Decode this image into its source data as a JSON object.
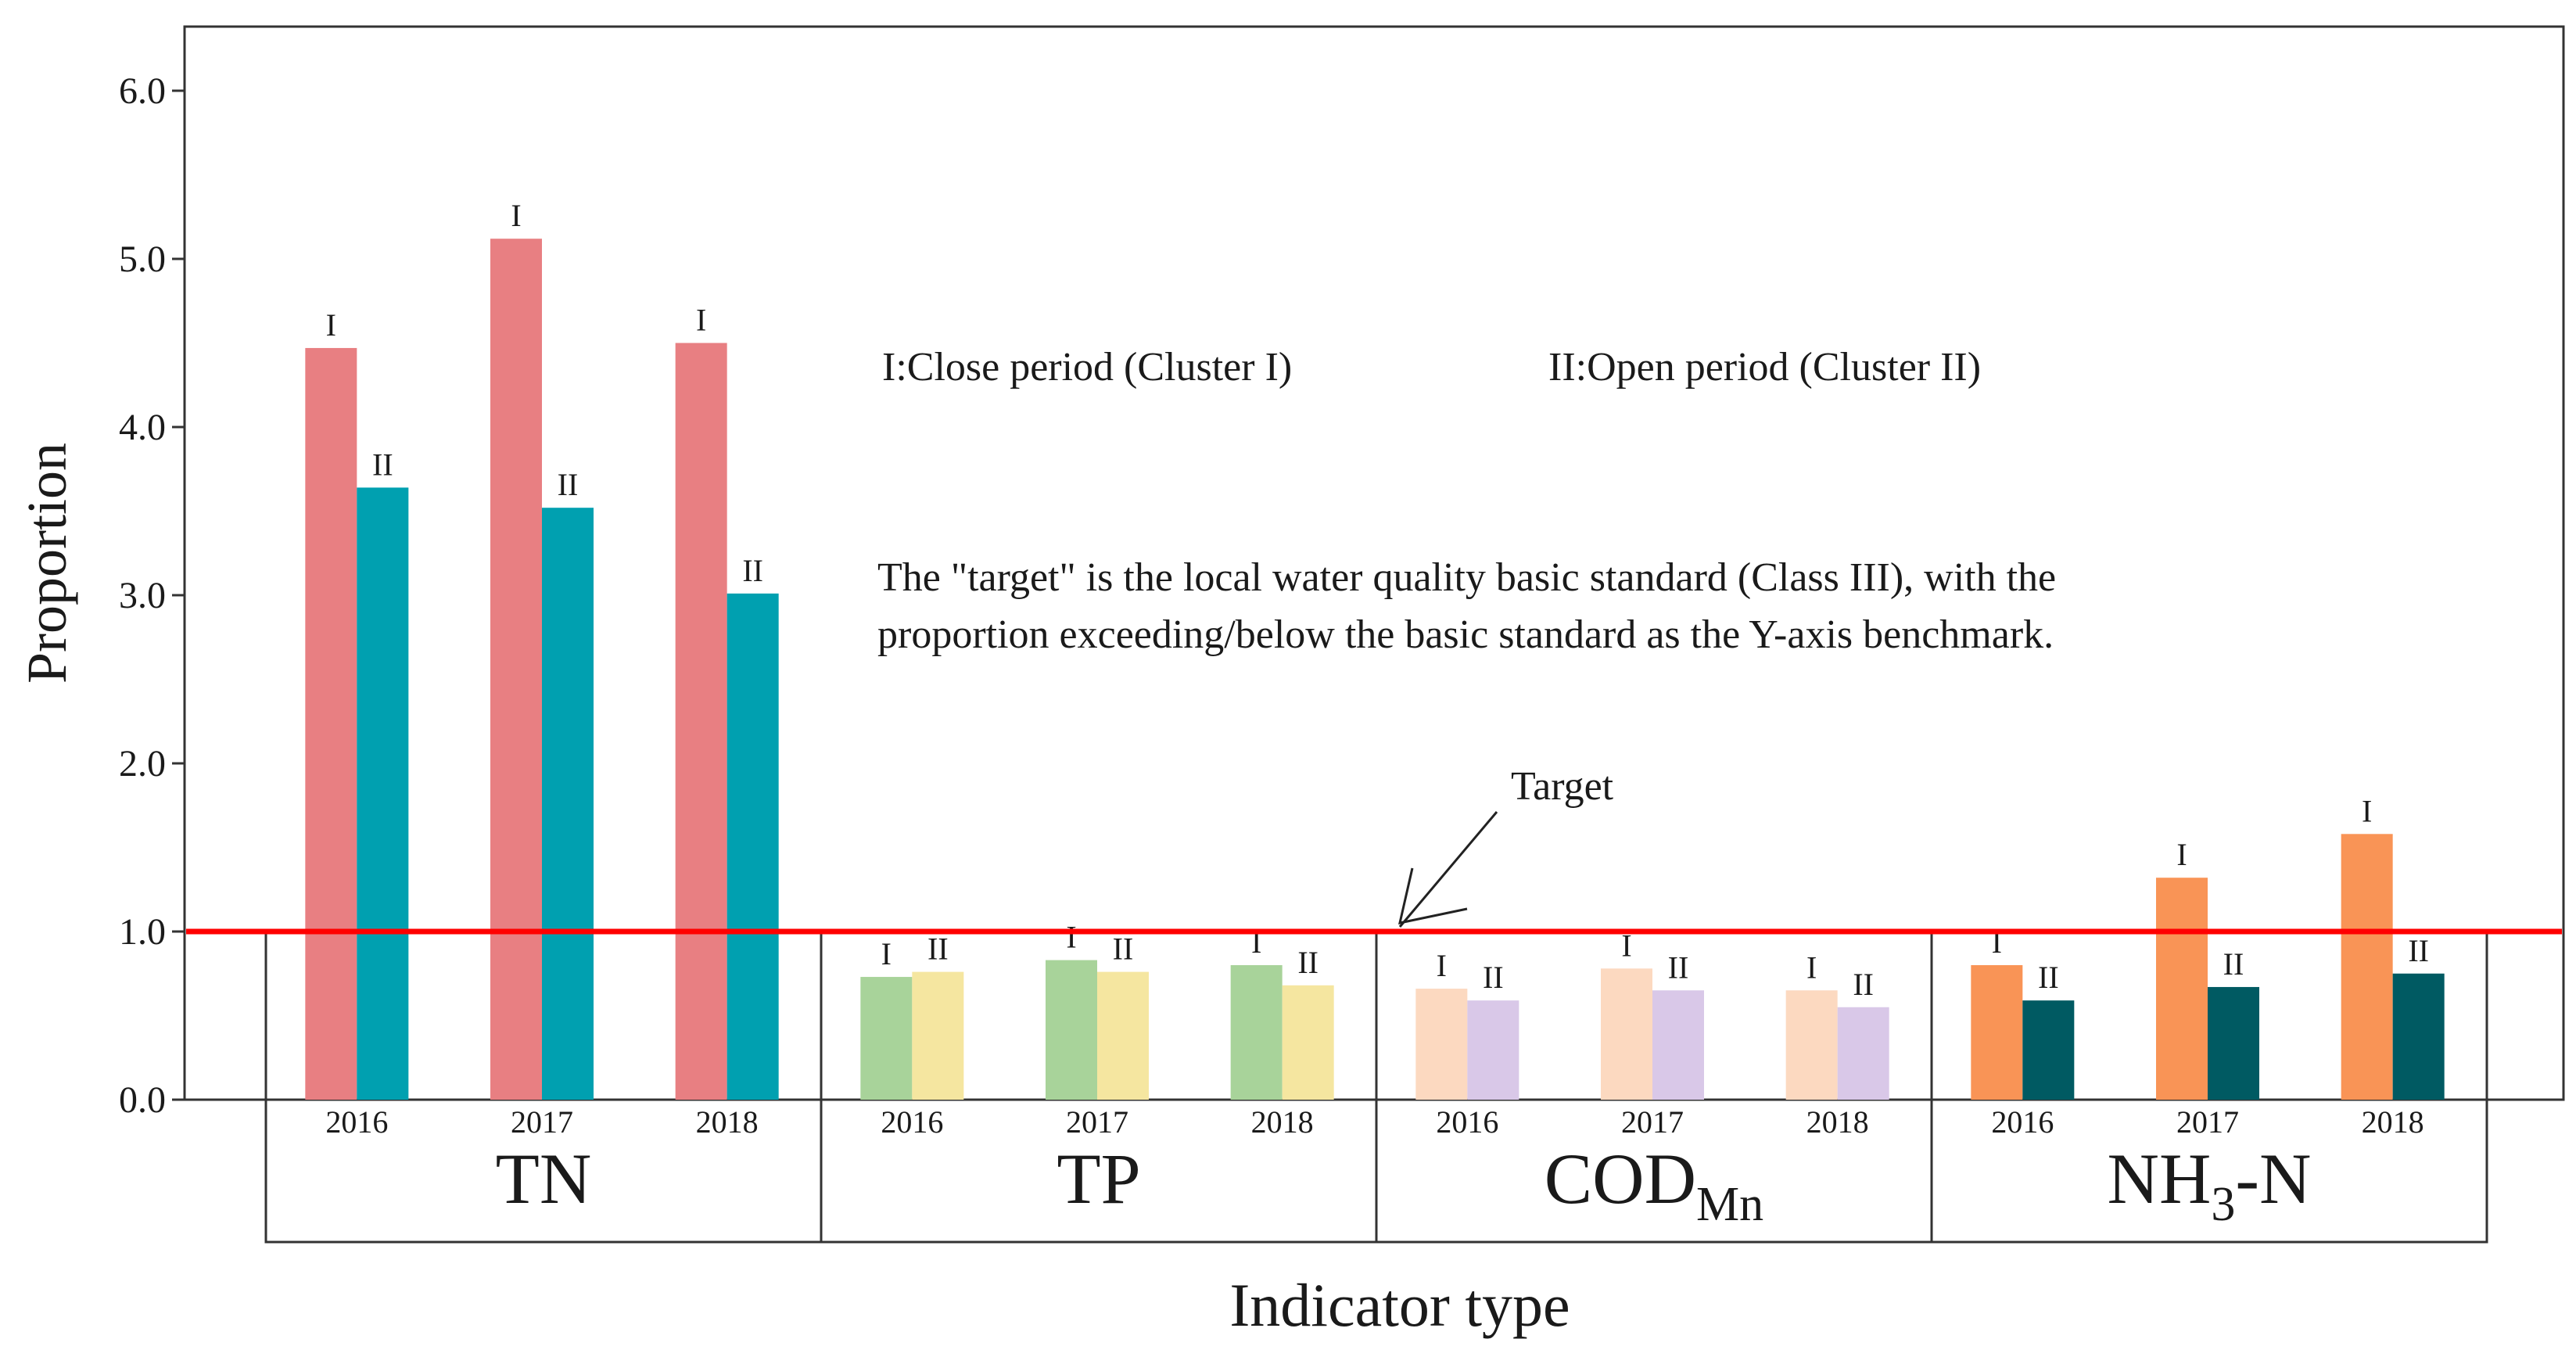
{
  "chart_data": {
    "type": "bar",
    "ylabel": "Proportion",
    "xlabel": "Indicator type",
    "ylim": [
      0,
      6.5
    ],
    "yticks": [
      "0.0",
      "1.0",
      "2.0",
      "3.0",
      "4.0",
      "5.0",
      "6.0"
    ],
    "target": {
      "value": 1.0,
      "label": "Target",
      "color": "#ff0000"
    },
    "legend": {
      "cluster1": "I:Close period (Cluster I)",
      "cluster2": "II:Open period (Cluster II)"
    },
    "markers": {
      "cluster1": "I",
      "cluster2": "II"
    },
    "note_lines": [
      "The \"target\" is the local water quality basic standard (Class III), with the",
      "proportion exceeding/below the basic standard as the Y-axis benchmark."
    ],
    "groups": [
      {
        "name": "TN",
        "sub": "",
        "suffix": "",
        "colors": [
          "#e87f82",
          "#00a0b0"
        ],
        "years": [
          "2016",
          "2017",
          "2018"
        ],
        "cluster1": [
          4.47,
          5.12,
          4.5
        ],
        "cluster2": [
          3.64,
          3.52,
          3.01
        ]
      },
      {
        "name": "TP",
        "sub": "",
        "suffix": "",
        "colors": [
          "#a8d39a",
          "#f5e6a0"
        ],
        "years": [
          "2016",
          "2017",
          "2018"
        ],
        "cluster1": [
          0.73,
          0.83,
          0.8
        ],
        "cluster2": [
          0.76,
          0.76,
          0.68
        ]
      },
      {
        "name": "COD",
        "sub": "Mn",
        "suffix": "",
        "colors": [
          "#fcd9c0",
          "#d9c8e8"
        ],
        "years": [
          "2016",
          "2017",
          "2018"
        ],
        "cluster1": [
          0.66,
          0.78,
          0.65
        ],
        "cluster2": [
          0.59,
          0.65,
          0.55
        ]
      },
      {
        "name": "NH",
        "sub": "3",
        "suffix": "-N",
        "colors": [
          "#f99456",
          "#005a62"
        ],
        "years": [
          "2016",
          "2017",
          "2018"
        ],
        "cluster1": [
          0.8,
          1.32,
          1.58
        ],
        "cluster2": [
          0.59,
          0.67,
          0.75
        ]
      }
    ]
  }
}
